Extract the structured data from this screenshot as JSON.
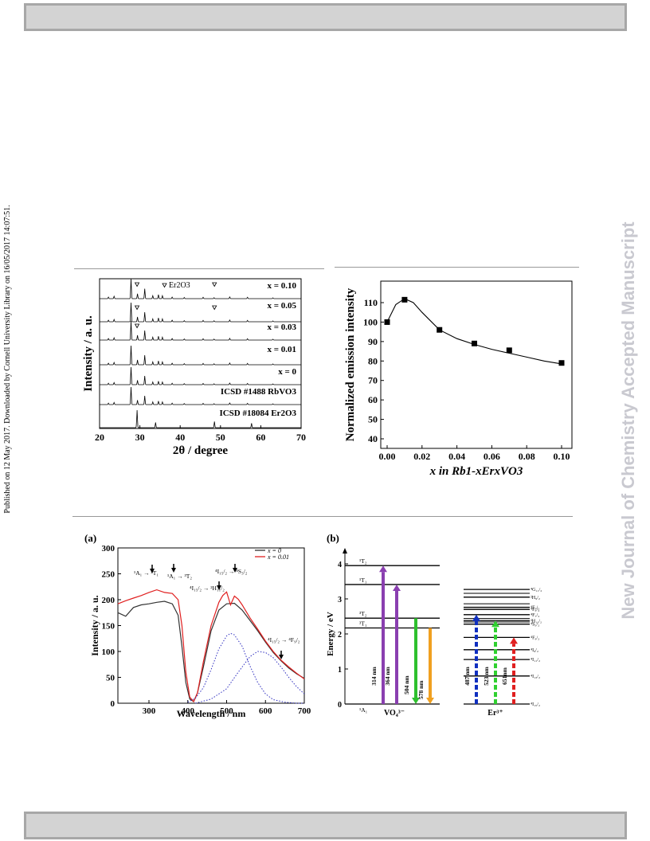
{
  "header_bar": "",
  "footer_bar": "",
  "side_note": "Published on 12 May 2017. Downloaded by Cornell University Library on 16/05/2017 14:07:51.",
  "watermark": "New Journal of Chemistry Accepted Manuscript",
  "chart_data": [
    {
      "type": "line",
      "id": "xrd",
      "xlabel": "2θ / degree",
      "ylabel": "Intensity / a. u.",
      "xlim": [
        20,
        70
      ],
      "x_ticks": [
        "20",
        "30",
        "40",
        "50",
        "60",
        "70"
      ],
      "legend_marker_label": "Er2O3",
      "series": [
        {
          "name": "x = 0.10",
          "impurity_marks_2theta": [
            29.3,
            48.5
          ]
        },
        {
          "name": "x = 0.05",
          "impurity_marks_2theta": [
            29.3,
            48.5
          ]
        },
        {
          "name": "x = 0.03",
          "impurity_marks_2theta": [
            29.3
          ]
        },
        {
          "name": "x = 0.01",
          "impurity_marks_2theta": []
        },
        {
          "name": "x = 0",
          "impurity_marks_2theta": []
        },
        {
          "name": "ICSD #1488 RbVO3",
          "impurity_marks_2theta": []
        },
        {
          "name": "ICSD #18084 Er2O3",
          "impurity_marks_2theta": []
        }
      ],
      "rbvo3_peaks": [
        [
          22.2,
          0.08
        ],
        [
          23.6,
          0.12
        ],
        [
          27.8,
          1.0
        ],
        [
          29.4,
          0.25
        ],
        [
          31.2,
          0.5
        ],
        [
          33.2,
          0.15
        ],
        [
          34.6,
          0.2
        ],
        [
          35.6,
          0.15
        ],
        [
          38.0,
          0.08
        ],
        [
          41.0,
          0.06
        ],
        [
          45.7,
          0.07
        ],
        [
          48.4,
          0.05
        ],
        [
          52.3,
          0.09
        ],
        [
          56.7,
          0.07
        ],
        [
          63.0,
          0.04
        ]
      ],
      "er2o3_peaks": [
        [
          29.3,
          1.0
        ],
        [
          33.9,
          0.3
        ],
        [
          48.5,
          0.35
        ],
        [
          57.7,
          0.25
        ]
      ],
      "grid": false,
      "legend": "none"
    },
    {
      "type": "scatter",
      "id": "emission",
      "xlabel": "x in Rb1-xErxVO3",
      "ylabel": "Normalized emission intensity",
      "xlim": [
        0,
        0.1
      ],
      "ylim": [
        40,
        110
      ],
      "x_ticks": [
        "0.00",
        "0.02",
        "0.04",
        "0.06",
        "0.08",
        "0.10"
      ],
      "y_ticks": [
        "40",
        "50",
        "60",
        "70",
        "80",
        "90",
        "100",
        "110"
      ],
      "x": [
        0,
        0.01,
        0.03,
        0.05,
        0.07,
        0.1
      ],
      "y": [
        100,
        111.5,
        96,
        89,
        85.5,
        79
      ],
      "fit_curve": [
        [
          0,
          100
        ],
        [
          0.005,
          109
        ],
        [
          0.01,
          112
        ],
        [
          0.015,
          110
        ],
        [
          0.02,
          105
        ],
        [
          0.03,
          96
        ],
        [
          0.04,
          91.5
        ],
        [
          0.05,
          88.5
        ],
        [
          0.06,
          86
        ],
        [
          0.07,
          84
        ],
        [
          0.08,
          82
        ],
        [
          0.09,
          80
        ],
        [
          0.1,
          78.5
        ]
      ],
      "grid": false,
      "legend": "none"
    },
    {
      "type": "line",
      "id": "pl-spectra",
      "panel_label": "(a)",
      "xlabel": "Wavelength / nm",
      "ylabel": "Intensity / a. u.",
      "xlim": [
        220,
        700
      ],
      "ylim": [
        0,
        300
      ],
      "x_ticks": [
        "300",
        "400",
        "500",
        "600",
        "700"
      ],
      "y_ticks": [
        "0",
        "50",
        "100",
        "150",
        "200",
        "250",
        "300"
      ],
      "series": [
        {
          "name": "x = 0",
          "color": "#333333",
          "x": [
            220,
            240,
            260,
            280,
            300,
            320,
            340,
            360,
            375,
            385,
            395,
            405,
            415,
            425,
            440,
            460,
            480,
            500,
            520,
            540,
            560,
            580,
            600,
            620,
            640,
            660,
            680,
            700
          ],
          "y": [
            175,
            168,
            185,
            190,
            192,
            195,
            197,
            192,
            170,
            110,
            40,
            8,
            3,
            20,
            70,
            140,
            180,
            192,
            193,
            180,
            160,
            140,
            118,
            98,
            82,
            68,
            57,
            48
          ]
        },
        {
          "name": "x = 0.01",
          "color": "#e02020",
          "x": [
            220,
            240,
            260,
            280,
            300,
            320,
            340,
            360,
            375,
            385,
            395,
            405,
            415,
            425,
            440,
            460,
            480,
            490,
            500,
            510,
            520,
            530,
            540,
            560,
            580,
            600,
            620,
            640,
            660,
            680,
            700
          ],
          "y": [
            192,
            198,
            203,
            208,
            214,
            219,
            214,
            212,
            200,
            150,
            60,
            12,
            3,
            20,
            80,
            150,
            195,
            208,
            215,
            190,
            207,
            201,
            190,
            165,
            143,
            120,
            100,
            83,
            70,
            58,
            47
          ]
        },
        {
          "name": "",
          "color": "#3030c0",
          "style": "dotted",
          "x": [
            400,
            420,
            440,
            460,
            480,
            500,
            510,
            520,
            540,
            560,
            580,
            600,
            620,
            650,
            680,
            700
          ],
          "y": [
            2,
            10,
            30,
            65,
            105,
            130,
            135,
            132,
            110,
            72,
            40,
            18,
            7,
            2,
            0,
            0
          ]
        },
        {
          "name": "",
          "color": "#3030c0",
          "style": "dotted",
          "x": [
            420,
            460,
            500,
            530,
            560,
            580,
            600,
            620,
            640,
            660,
            680,
            700
          ],
          "y": [
            0,
            8,
            28,
            60,
            90,
            100,
            98,
            88,
            70,
            50,
            32,
            18
          ]
        }
      ],
      "annotations": [
        "¹A₁ → ³T₁",
        "¹A₁ → ³T₂",
        "⁴I₁₅/₂ → ⁴S₃/₂",
        "⁴I₁₅/₂ → ²H₁₁/₂",
        "⁴I₁₅/₂ → ⁴F₉/₂"
      ],
      "grid": false,
      "legend": "top-right"
    },
    {
      "type": "diagram",
      "id": "energy-levels",
      "panel_label": "(b)",
      "ylabel": "Energy / eV",
      "ylim": [
        0,
        4
      ],
      "y_ticks": [
        "0",
        "1",
        "2",
        "3",
        "4"
      ],
      "vo4_label": "VO₄³⁻",
      "er_label": "Er³⁺",
      "vo4_levels": [
        {
          "label": "¹A₁",
          "energy": 0
        },
        {
          "label": "³T₁",
          "energy": 2.17
        },
        {
          "label": "³T₂",
          "energy": 2.45
        },
        {
          "label": "¹T₁",
          "energy": 3.41
        },
        {
          "label": "¹T₂",
          "energy": 3.95
        }
      ],
      "vo4_transitions": [
        {
          "label": "314 nm",
          "from": 0,
          "to": 3.95,
          "dir": "up",
          "color": "#8a3fb0"
        },
        {
          "label": "364 nm",
          "from": 0,
          "to": 3.41,
          "dir": "up",
          "color": "#8a3fb0"
        },
        {
          "label": "504 nm",
          "from": 2.45,
          "to": 0,
          "dir": "down",
          "color": "#2ec02e"
        },
        {
          "label": "578 nm",
          "from": 2.17,
          "to": 0,
          "dir": "down",
          "color": "#f0a020"
        }
      ],
      "er_levels": [
        {
          "label": "⁴I₁₅/₂",
          "energy": 0
        },
        {
          "label": "⁴I₁₃/₂",
          "energy": 0.8
        },
        {
          "label": "⁴I₁₁/₂",
          "energy": 1.27
        },
        {
          "label": "⁴I₉/₂",
          "energy": 1.55
        },
        {
          "label": "⁴F₉/₂",
          "energy": 1.9
        },
        {
          "label": "⁴S₃/₂",
          "energy": 2.28
        },
        {
          "label": "²H₁₁/₂",
          "energy": 2.38
        },
        {
          "label": "⁴F₇/₂",
          "energy": 2.55
        },
        {
          "label": "⁴F₅/₂",
          "energy": 2.7
        },
        {
          "label": "⁴F₃/₂",
          "energy": 2.76
        },
        {
          "label": "²H₉/₂",
          "energy": 3.05
        },
        {
          "label": "⁴G₁₁/₂",
          "energy": 3.27
        }
      ],
      "er_extra_lines": [
        2.34,
        2.44,
        2.86,
        3.16
      ],
      "er_transitions": [
        {
          "label": "487 nm",
          "from": 0,
          "to": 2.55,
          "dir": "up",
          "color": "#1030c0"
        },
        {
          "label": "523 nm",
          "from": 0,
          "to": 2.38,
          "dir": "up",
          "color": "#30d030"
        },
        {
          "label": "651nm",
          "from": 0,
          "to": 1.9,
          "dir": "up",
          "color": "#e02020"
        }
      ]
    }
  ]
}
